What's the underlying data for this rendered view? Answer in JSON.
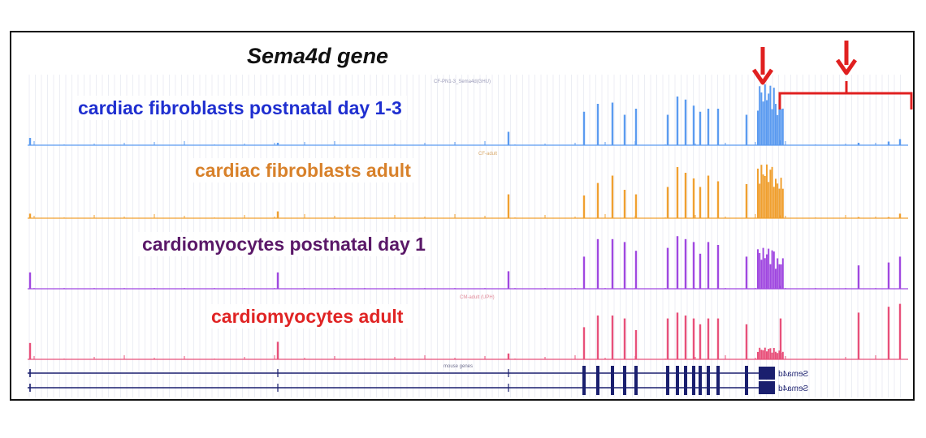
{
  "figure": {
    "title": "Sema4d gene",
    "track_labels": [
      {
        "text": "cardiac fibroblasts postnatal day 1-3",
        "color": "#1f2fd0"
      },
      {
        "text": "cardiac fibroblasts adult",
        "color": "#d8812a"
      },
      {
        "text": "cardiomyocytes postnatal day 1",
        "color": "#5a1868"
      },
      {
        "text": "cardiomyocytes adult",
        "color": "#e02424"
      }
    ],
    "track_header_texts": [
      "CF-PN1-3_Sema4d(GHU)",
      "CF-adult",
      "CM-adult (UPH)",
      "mouse genes"
    ],
    "gene_names": [
      "Sema4d",
      "Sema4d"
    ],
    "track_colors": [
      "#5b9bf0",
      "#f0a030",
      "#a048e0",
      "#e8507a"
    ],
    "gene_model_color": "#1a1f6e",
    "annotation_color": "#e02020",
    "annotations": [
      "down-arrow-left",
      "down-arrow-right",
      "bracket"
    ]
  }
}
